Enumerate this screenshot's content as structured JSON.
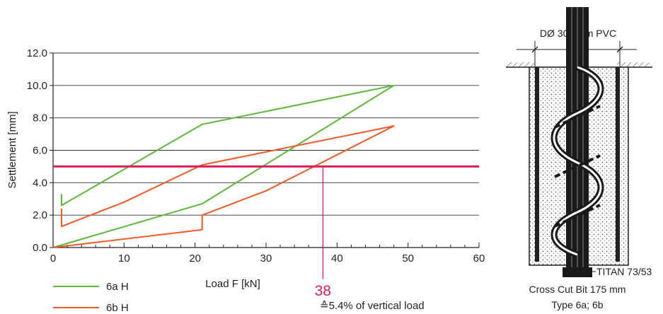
{
  "chart_data": {
    "type": "line",
    "title": "",
    "xlabel": "Load F [kN]",
    "ylabel": "Settlement [mm]",
    "xlim": [
      0,
      60
    ],
    "ylim": [
      0,
      12
    ],
    "x_ticks": [
      "0",
      "10",
      "20",
      "30",
      "40",
      "50",
      "60"
    ],
    "y_ticks": [
      "0.0",
      "2.0",
      "4.0",
      "6.0",
      "8.0",
      "10.0",
      "12.0"
    ],
    "grid": "horizontal",
    "legend_position": "bottom-left",
    "series": [
      {
        "name": "6a H",
        "color": "#5cb83a",
        "points": [
          [
            1.2,
            3.3
          ],
          [
            1.2,
            2.6
          ],
          [
            21,
            7.6
          ],
          [
            48,
            10.0
          ],
          [
            21,
            2.7
          ],
          [
            0,
            0
          ]
        ]
      },
      {
        "name": "6b H",
        "color": "#f05a28",
        "points": [
          [
            1.2,
            2.4
          ],
          [
            1.2,
            1.3
          ],
          [
            10,
            2.8
          ],
          [
            21,
            5.1
          ],
          [
            48,
            7.5
          ],
          [
            30,
            3.5
          ],
          [
            21,
            2.0
          ],
          [
            21,
            1.1
          ],
          [
            0,
            0
          ]
        ]
      }
    ],
    "reference_line": {
      "y": 5.0,
      "color": "#d81e5b"
    },
    "annotation": {
      "x": 38,
      "label": "38",
      "color": "#d81e5b"
    },
    "note": "≙5.4% of vertical load"
  },
  "diagram": {
    "top_label": "DØ 300 mm PVC",
    "anchor_label": "TITAN 73/53",
    "bit_label": "Cross Cut Bit 175 mm",
    "type_label": "Type 6a; 6b"
  }
}
